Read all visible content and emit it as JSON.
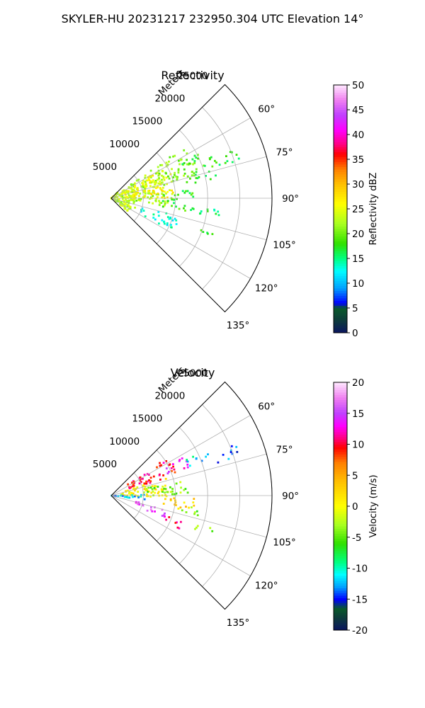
{
  "title": "SKYLER-HU  20231217  232950.304 UTC Elevation 14°",
  "chart_data": [
    {
      "type": "polar-sector",
      "title": "Reflectivity",
      "radial_label": "Meters",
      "radial_ticks": [
        5000,
        10000,
        15000,
        20000,
        25000
      ],
      "radial_max": 25000,
      "angle_ticks_deg": [
        60,
        75,
        90,
        105,
        120,
        135
      ],
      "angle_range_deg": [
        45,
        135
      ],
      "grid": true,
      "colorbar": {
        "label": "Reflectivity dBZ",
        "min": 0,
        "max": 50,
        "ticks": [
          0,
          5,
          10,
          15,
          20,
          25,
          30,
          35,
          40,
          45,
          50
        ],
        "stops": [
          {
            "v": 0,
            "c": "#0a1460"
          },
          {
            "v": 2.5,
            "c": "#0d3b3b"
          },
          {
            "v": 5,
            "c": "#0a5a2a"
          },
          {
            "v": 6,
            "c": "#0000ff"
          },
          {
            "v": 9,
            "c": "#00a0ff"
          },
          {
            "v": 12.5,
            "c": "#00ffff"
          },
          {
            "v": 15,
            "c": "#00ff80"
          },
          {
            "v": 18,
            "c": "#30e000"
          },
          {
            "v": 22,
            "c": "#a8ff20"
          },
          {
            "v": 26,
            "c": "#ffff00"
          },
          {
            "v": 30,
            "c": "#ffc000"
          },
          {
            "v": 33,
            "c": "#ff8000"
          },
          {
            "v": 36,
            "c": "#ff0000"
          },
          {
            "v": 38,
            "c": "#ff0080"
          },
          {
            "v": 41,
            "c": "#ff00ff"
          },
          {
            "v": 44,
            "c": "#c040ff"
          },
          {
            "v": 47,
            "c": "#f080f0"
          },
          {
            "v": 50,
            "c": "#ffe8ff"
          }
        ]
      },
      "echoes": [
        {
          "az": [
            49,
            128
          ],
          "r": [
            0,
            4000
          ],
          "value": 23
        },
        {
          "az": [
            55,
            98
          ],
          "r": [
            3000,
            9000
          ],
          "value": 22
        },
        {
          "az": [
            60,
            92
          ],
          "r": [
            2000,
            10000
          ],
          "value": 26
        },
        {
          "az": [
            55,
            76
          ],
          "r": [
            8000,
            14000
          ],
          "value": 21
        },
        {
          "az": [
            63,
            80
          ],
          "r": [
            12000,
            17000
          ],
          "value": 18
        },
        {
          "az": [
            67,
            74
          ],
          "r": [
            17000,
            21000
          ],
          "value": 17
        },
        {
          "az": [
            84,
            100
          ],
          "r": [
            8000,
            13000
          ],
          "value": 18
        },
        {
          "az": [
            96,
            102
          ],
          "r": [
            12000,
            17000
          ],
          "value": 16
        },
        {
          "az": [
            105,
            118
          ],
          "r": [
            5000,
            11000
          ],
          "value": 13
        },
        {
          "az": [
            108,
            112
          ],
          "r": [
            14000,
            17000
          ],
          "value": 17
        }
      ]
    },
    {
      "type": "polar-sector",
      "title": "Velocity",
      "radial_label": "Meters",
      "radial_ticks": [
        5000,
        10000,
        15000,
        20000,
        25000
      ],
      "radial_max": 25000,
      "angle_ticks_deg": [
        60,
        75,
        90,
        105,
        120,
        135
      ],
      "angle_range_deg": [
        45,
        135
      ],
      "grid": true,
      "colorbar": {
        "label": "Velocity (m/s)",
        "min": -20,
        "max": 20,
        "ticks": [
          -20,
          -15,
          -10,
          -5,
          0,
          5,
          10,
          15,
          20
        ],
        "stops": [
          {
            "v": -20,
            "c": "#0a1460"
          },
          {
            "v": -18,
            "c": "#0d3b3b"
          },
          {
            "v": -16.5,
            "c": "#0a5a2a"
          },
          {
            "v": -15,
            "c": "#0000ff"
          },
          {
            "v": -13,
            "c": "#00a0ff"
          },
          {
            "v": -11,
            "c": "#00ffff"
          },
          {
            "v": -9,
            "c": "#00ff80"
          },
          {
            "v": -6,
            "c": "#30e000"
          },
          {
            "v": -3,
            "c": "#a8ff20"
          },
          {
            "v": 0,
            "c": "#ffff00"
          },
          {
            "v": 4,
            "c": "#ffc000"
          },
          {
            "v": 7,
            "c": "#ff8000"
          },
          {
            "v": 9.5,
            "c": "#ff0000"
          },
          {
            "v": 11,
            "c": "#ff0080"
          },
          {
            "v": 13,
            "c": "#ff00ff"
          },
          {
            "v": 15,
            "c": "#c040ff"
          },
          {
            "v": 17.5,
            "c": "#f080f0"
          },
          {
            "v": 20,
            "c": "#ffe8ff"
          }
        ]
      },
      "echoes": [
        {
          "az": [
            56,
            72
          ],
          "r": [
            3000,
            11000
          ],
          "value": 10
        },
        {
          "az": [
            62,
            70
          ],
          "r": [
            9000,
            13000
          ],
          "value": 14
        },
        {
          "az": [
            64,
            70
          ],
          "r": [
            13000,
            17000
          ],
          "value": -11
        },
        {
          "az": [
            67,
            73
          ],
          "r": [
            17000,
            21000
          ],
          "value": -14
        },
        {
          "az": [
            72,
            92
          ],
          "r": [
            1500,
            9000
          ],
          "value": 1
        },
        {
          "az": [
            78,
            90
          ],
          "r": [
            5000,
            12000
          ],
          "value": -4
        },
        {
          "az": [
            88,
            98
          ],
          "r": [
            0,
            6000
          ],
          "value": -12
        },
        {
          "az": [
            92,
            101
          ],
          "r": [
            8000,
            13000
          ],
          "value": 3
        },
        {
          "az": [
            98,
            104
          ],
          "r": [
            11000,
            14000
          ],
          "value": -5
        },
        {
          "az": [
            104,
            114
          ],
          "r": [
            4000,
            9000
          ],
          "value": 15
        },
        {
          "az": [
            110,
            116
          ],
          "r": [
            9000,
            12000
          ],
          "value": 10
        },
        {
          "az": [
            108,
            112
          ],
          "r": [
            14000,
            17000
          ],
          "value": -4
        }
      ]
    }
  ]
}
